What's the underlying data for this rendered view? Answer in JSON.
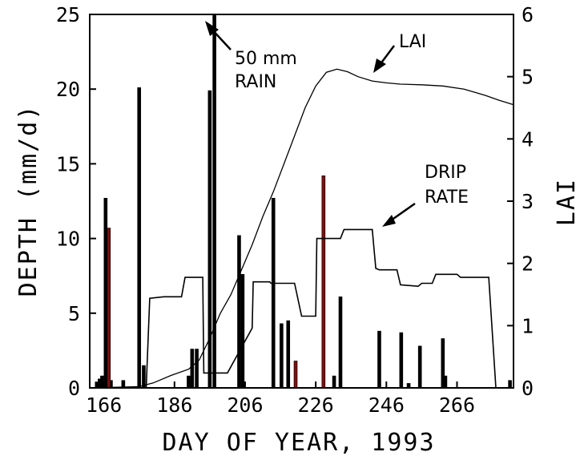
{
  "chart_data": {
    "type": "bar",
    "xlabel": "DAY OF YEAR, 1993",
    "ylabel_left": "DEPTH (mm/d)",
    "ylabel_right": "LAI",
    "xlim": [
      162,
      282
    ],
    "ylim_left": [
      0,
      25
    ],
    "ylim_right": [
      0,
      6
    ],
    "x_ticks": [
      166,
      186,
      206,
      226,
      246,
      266
    ],
    "y_ticks_left": [
      0,
      5,
      10,
      15,
      20,
      25
    ],
    "y_ticks_right": [
      0,
      1,
      2,
      3,
      4,
      5,
      6
    ],
    "grid": false,
    "colors": {
      "rain": "#000000",
      "highlight": "#7a1010",
      "line": "#000000"
    },
    "rain_series": [
      {
        "x": 164,
        "y": 0.4
      },
      {
        "x": 164.8,
        "y": 0.6
      },
      {
        "x": 165.5,
        "y": 0.8
      },
      {
        "x": 166.5,
        "y": 12.7
      },
      {
        "x": 168,
        "y": 0.5
      },
      {
        "x": 171.5,
        "y": 0.5
      },
      {
        "x": 176,
        "y": 20.1
      },
      {
        "x": 177.3,
        "y": 1.5
      },
      {
        "x": 190,
        "y": 0.8
      },
      {
        "x": 191,
        "y": 2.6
      },
      {
        "x": 192.3,
        "y": 2.6
      },
      {
        "x": 196,
        "y": 19.9
      },
      {
        "x": 197.3,
        "y": 50
      },
      {
        "x": 204.3,
        "y": 10.2
      },
      {
        "x": 205.3,
        "y": 7.6
      },
      {
        "x": 214,
        "y": 12.7
      },
      {
        "x": 216.3,
        "y": 4.3
      },
      {
        "x": 218.2,
        "y": 4.5
      },
      {
        "x": 231.2,
        "y": 0.8
      },
      {
        "x": 233,
        "y": 6.1
      },
      {
        "x": 244,
        "y": 3.8
      },
      {
        "x": 250.2,
        "y": 3.7
      },
      {
        "x": 252.3,
        "y": 0.3
      },
      {
        "x": 255.5,
        "y": 2.8
      },
      {
        "x": 262,
        "y": 3.3
      },
      {
        "x": 262.7,
        "y": 0.8
      },
      {
        "x": 281,
        "y": 0.5
      }
    ],
    "highlight_series": [
      {
        "x": 167.4,
        "y": 10.7
      },
      {
        "x": 220.3,
        "y": 1.8
      },
      {
        "x": 228.2,
        "y": 14.2
      }
    ],
    "drip_rate": {
      "x": [
        162,
        178,
        179,
        183,
        184,
        188,
        189,
        194,
        194.3,
        200,
        201,
        208,
        208.3,
        213,
        213.3,
        220,
        222,
        226,
        226.3,
        233,
        234,
        241,
        242,
        243,
        244,
        249,
        250,
        255,
        256,
        259,
        260,
        266,
        267,
        275,
        277,
        282
      ],
      "y": [
        0,
        0,
        6.0,
        6.1,
        6.1,
        6.1,
        7.4,
        7.4,
        1.0,
        1.0,
        1.0,
        4.0,
        7.1,
        7.1,
        7.0,
        7.0,
        4.8,
        4.8,
        10.0,
        10.0,
        10.6,
        10.6,
        10.6,
        8.0,
        7.9,
        7.9,
        6.9,
        6.8,
        7.0,
        7.0,
        7.6,
        7.6,
        7.4,
        7.4,
        0,
        0
      ]
    },
    "lai": {
      "x": [
        162,
        170,
        176,
        180,
        185,
        190,
        193,
        196,
        199,
        202,
        205,
        208,
        211,
        214,
        217,
        220,
        223,
        226,
        229,
        232,
        235,
        238,
        242,
        246,
        250,
        256,
        262,
        268,
        274,
        278,
        282
      ],
      "y": [
        0.0,
        0.01,
        0.02,
        0.08,
        0.2,
        0.3,
        0.45,
        0.8,
        1.2,
        1.5,
        1.9,
        2.3,
        2.75,
        3.15,
        3.6,
        4.05,
        4.5,
        4.85,
        5.07,
        5.12,
        5.08,
        5.0,
        4.93,
        4.9,
        4.88,
        4.87,
        4.85,
        4.8,
        4.7,
        4.62,
        4.55
      ]
    },
    "annotations": [
      {
        "text_lines": [
          "50 mm",
          "RAIN"
        ]
      },
      {
        "text_lines": [
          "LAI"
        ]
      },
      {
        "text_lines": [
          "DRIP",
          "RATE"
        ]
      }
    ]
  }
}
